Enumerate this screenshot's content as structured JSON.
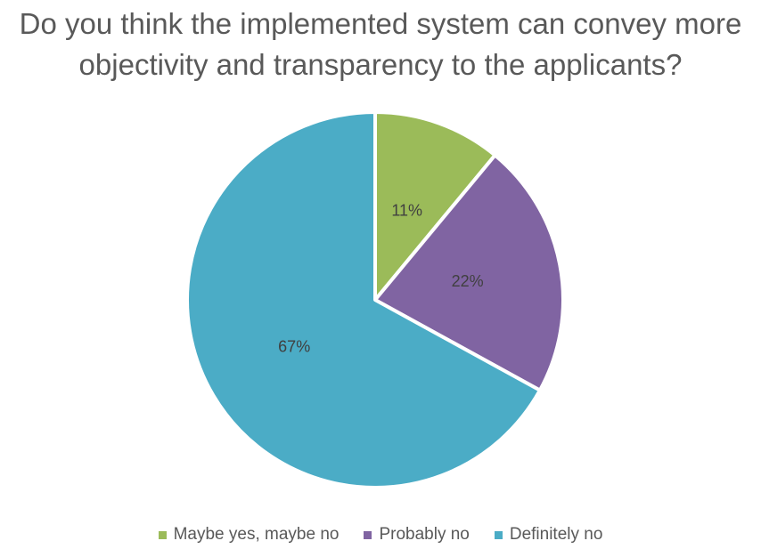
{
  "chart_data": {
    "type": "pie",
    "title": "Do you think the implemented system can convey more objectivity and transparency to the applicants?",
    "categories": [
      "Maybe yes, maybe no",
      "Probably no",
      "Definitely no"
    ],
    "values": [
      11,
      22,
      67
    ],
    "value_labels": [
      "11%",
      "22%",
      "67%"
    ],
    "colors": [
      "#9bbb59",
      "#8064a2",
      "#4bacc6"
    ],
    "legend": "bottom"
  }
}
